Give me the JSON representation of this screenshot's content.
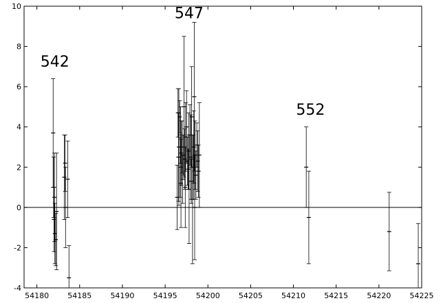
{
  "chart_data": {
    "type": "scatter",
    "title": "",
    "xlabel": "",
    "ylabel": "",
    "xlim": [
      54178.5,
      54225
    ],
    "ylim": [
      -4,
      10
    ],
    "xticks": [
      54180,
      54185,
      54190,
      54195,
      54200,
      54205,
      54210,
      54215,
      54220,
      54225
    ],
    "xtick_labels": [
      "54180",
      "54185",
      "54190",
      "54195",
      "54200",
      "54205",
      "54210",
      "54215",
      "54220",
      "54225"
    ],
    "yticks": [
      -4,
      -2,
      0,
      2,
      4,
      6,
      8,
      10
    ],
    "ytick_labels": [
      "-4",
      "-2",
      "0",
      "2",
      "4",
      "6",
      "8",
      "10"
    ],
    "grid": false,
    "reference_line_y": 0,
    "error_bars": true,
    "series": [
      {
        "points": [
          {
            "x": 54181.9,
            "y": 3.7,
            "err": 2.7
          },
          {
            "x": 54181.95,
            "y": 1.0,
            "err": 1.5
          },
          {
            "x": 54182.0,
            "y": -0.6,
            "err": 1.6
          },
          {
            "x": 54182.05,
            "y": 0.5,
            "err": 2.2
          },
          {
            "x": 54182.1,
            "y": -1.3,
            "err": 1.5
          },
          {
            "x": 54182.2,
            "y": -1.6,
            "err": 1.3
          },
          {
            "x": 54182.3,
            "y": -0.2,
            "err": 2.9
          },
          {
            "x": 54183.2,
            "y": 1.5,
            "err": 2.1
          },
          {
            "x": 54183.3,
            "y": 2.2,
            "err": 1.4
          },
          {
            "x": 54183.35,
            "y": 0.0,
            "err": 2.0
          },
          {
            "x": 54183.6,
            "y": 1.4,
            "err": 1.9
          },
          {
            "x": 54183.75,
            "y": -3.5,
            "err": 1.6
          },
          {
            "x": 54196.4,
            "y": 0.5,
            "err": 1.6
          },
          {
            "x": 54196.5,
            "y": 4.7,
            "err": 1.2
          },
          {
            "x": 54196.55,
            "y": 2.5,
            "err": 2.2
          },
          {
            "x": 54196.6,
            "y": 3.0,
            "err": 2.9
          },
          {
            "x": 54196.7,
            "y": 4.5,
            "err": 0.8
          },
          {
            "x": 54196.75,
            "y": 2.0,
            "err": 1.5
          },
          {
            "x": 54196.8,
            "y": 3.6,
            "err": 1.4
          },
          {
            "x": 54196.85,
            "y": 1.2,
            "err": 2.2
          },
          {
            "x": 54196.9,
            "y": 2.7,
            "err": 1.6
          },
          {
            "x": 54197.0,
            "y": 3.0,
            "err": 1.3
          },
          {
            "x": 54197.05,
            "y": 1.4,
            "err": 1.2
          },
          {
            "x": 54197.1,
            "y": 2.6,
            "err": 1.0
          },
          {
            "x": 54197.2,
            "y": 5.0,
            "err": 3.5
          },
          {
            "x": 54197.3,
            "y": 2.4,
            "err": 1.5
          },
          {
            "x": 54197.35,
            "y": 1.0,
            "err": 2.0
          },
          {
            "x": 54197.4,
            "y": 3.5,
            "err": 1.7
          },
          {
            "x": 54197.5,
            "y": 4.0,
            "err": 1.8
          },
          {
            "x": 54197.6,
            "y": 2.3,
            "err": 1.2
          },
          {
            "x": 54197.7,
            "y": 1.9,
            "err": 1.0
          },
          {
            "x": 54197.75,
            "y": 2.8,
            "err": 1.9
          },
          {
            "x": 54197.8,
            "y": 0.9,
            "err": 2.7
          },
          {
            "x": 54197.9,
            "y": 3.6,
            "err": 1.5
          },
          {
            "x": 54198.0,
            "y": 2.5,
            "err": 2.1
          },
          {
            "x": 54198.05,
            "y": 1.3,
            "err": 1.1
          },
          {
            "x": 54198.1,
            "y": 4.5,
            "err": 2.5
          },
          {
            "x": 54198.2,
            "y": 0.4,
            "err": 3.2
          },
          {
            "x": 54198.3,
            "y": 2.0,
            "err": 1.6
          },
          {
            "x": 54198.35,
            "y": 3.0,
            "err": 1.8
          },
          {
            "x": 54198.4,
            "y": 5.5,
            "err": 3.7
          },
          {
            "x": 54198.45,
            "y": 0.0,
            "err": 2.6
          },
          {
            "x": 54198.5,
            "y": 2.6,
            "err": 1.7
          },
          {
            "x": 54198.6,
            "y": 1.6,
            "err": 1.2
          },
          {
            "x": 54198.7,
            "y": 3.1,
            "err": 1.1
          },
          {
            "x": 54198.8,
            "y": 2.3,
            "err": 1.5
          },
          {
            "x": 54198.9,
            "y": 1.8,
            "err": 1.3
          },
          {
            "x": 54199.0,
            "y": 2.6,
            "err": 2.6
          },
          {
            "x": 54211.5,
            "y": 2.0,
            "err": 2.0
          },
          {
            "x": 54211.8,
            "y": -0.5,
            "err": 2.3
          },
          {
            "x": 54221.2,
            "y": -1.2,
            "err": 1.95
          },
          {
            "x": 54224.6,
            "y": -2.8,
            "err": 2.0
          }
        ]
      }
    ],
    "annotations": [
      {
        "text": "542",
        "x": 54182.1,
        "y": 7.0
      },
      {
        "text": "547",
        "x": 54197.8,
        "y": 9.4
      },
      {
        "text": "552",
        "x": 54212.0,
        "y": 4.6
      }
    ]
  }
}
